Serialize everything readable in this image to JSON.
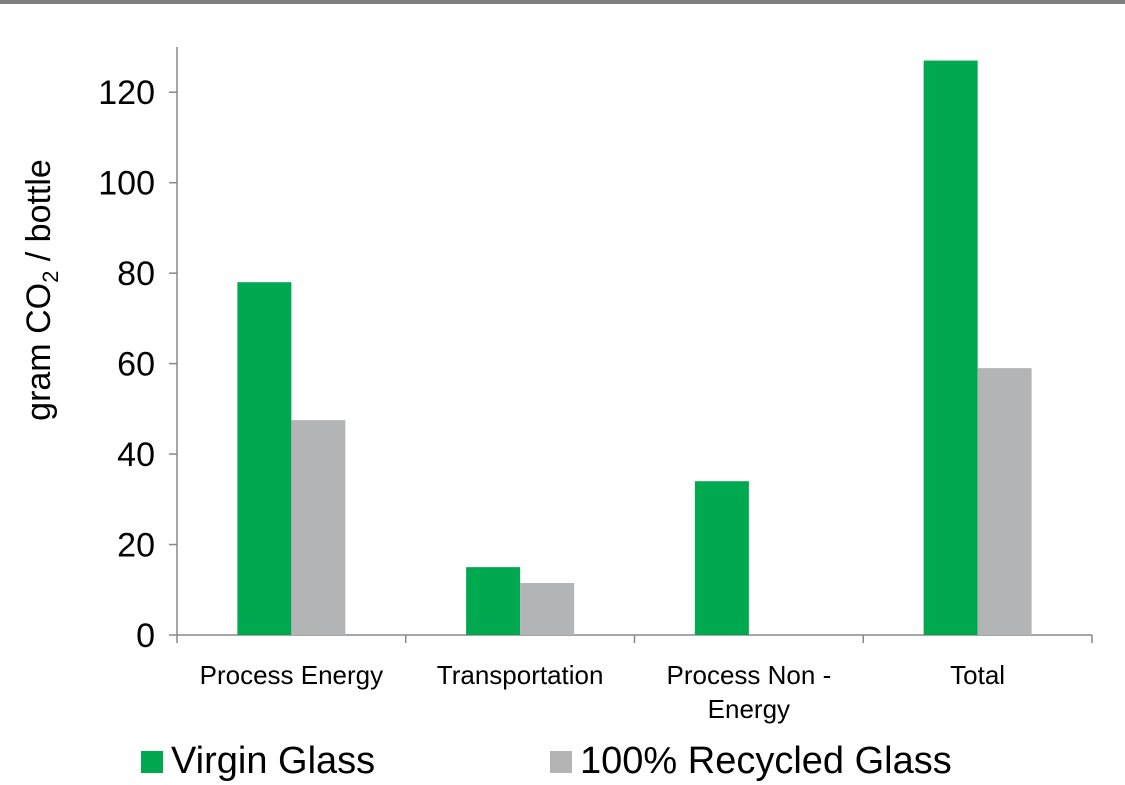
{
  "chart_data": {
    "type": "bar",
    "categories": [
      "Process Energy",
      "Transportation",
      "Process Non - Energy",
      "Total"
    ],
    "category_lines": [
      [
        "Process Energy"
      ],
      [
        "Transportation"
      ],
      [
        "Process Non -",
        "Energy"
      ],
      [
        "Total"
      ]
    ],
    "series": [
      {
        "name": "Virgin Glass",
        "values": [
          78,
          15,
          34,
          127
        ],
        "color": "#00a84f"
      },
      {
        "name": "100% Recycled Glass",
        "values": [
          47.5,
          11.5,
          0,
          59
        ],
        "color": "#b3b4b6"
      }
    ],
    "ylabel": {
      "prefix": "gram CO",
      "subscript": "2",
      "suffix": " / bottle"
    },
    "ylim": [
      0,
      130
    ],
    "yticks": [
      0,
      20,
      40,
      60,
      80,
      100,
      120
    ],
    "grid": false,
    "legend": "bottom"
  }
}
